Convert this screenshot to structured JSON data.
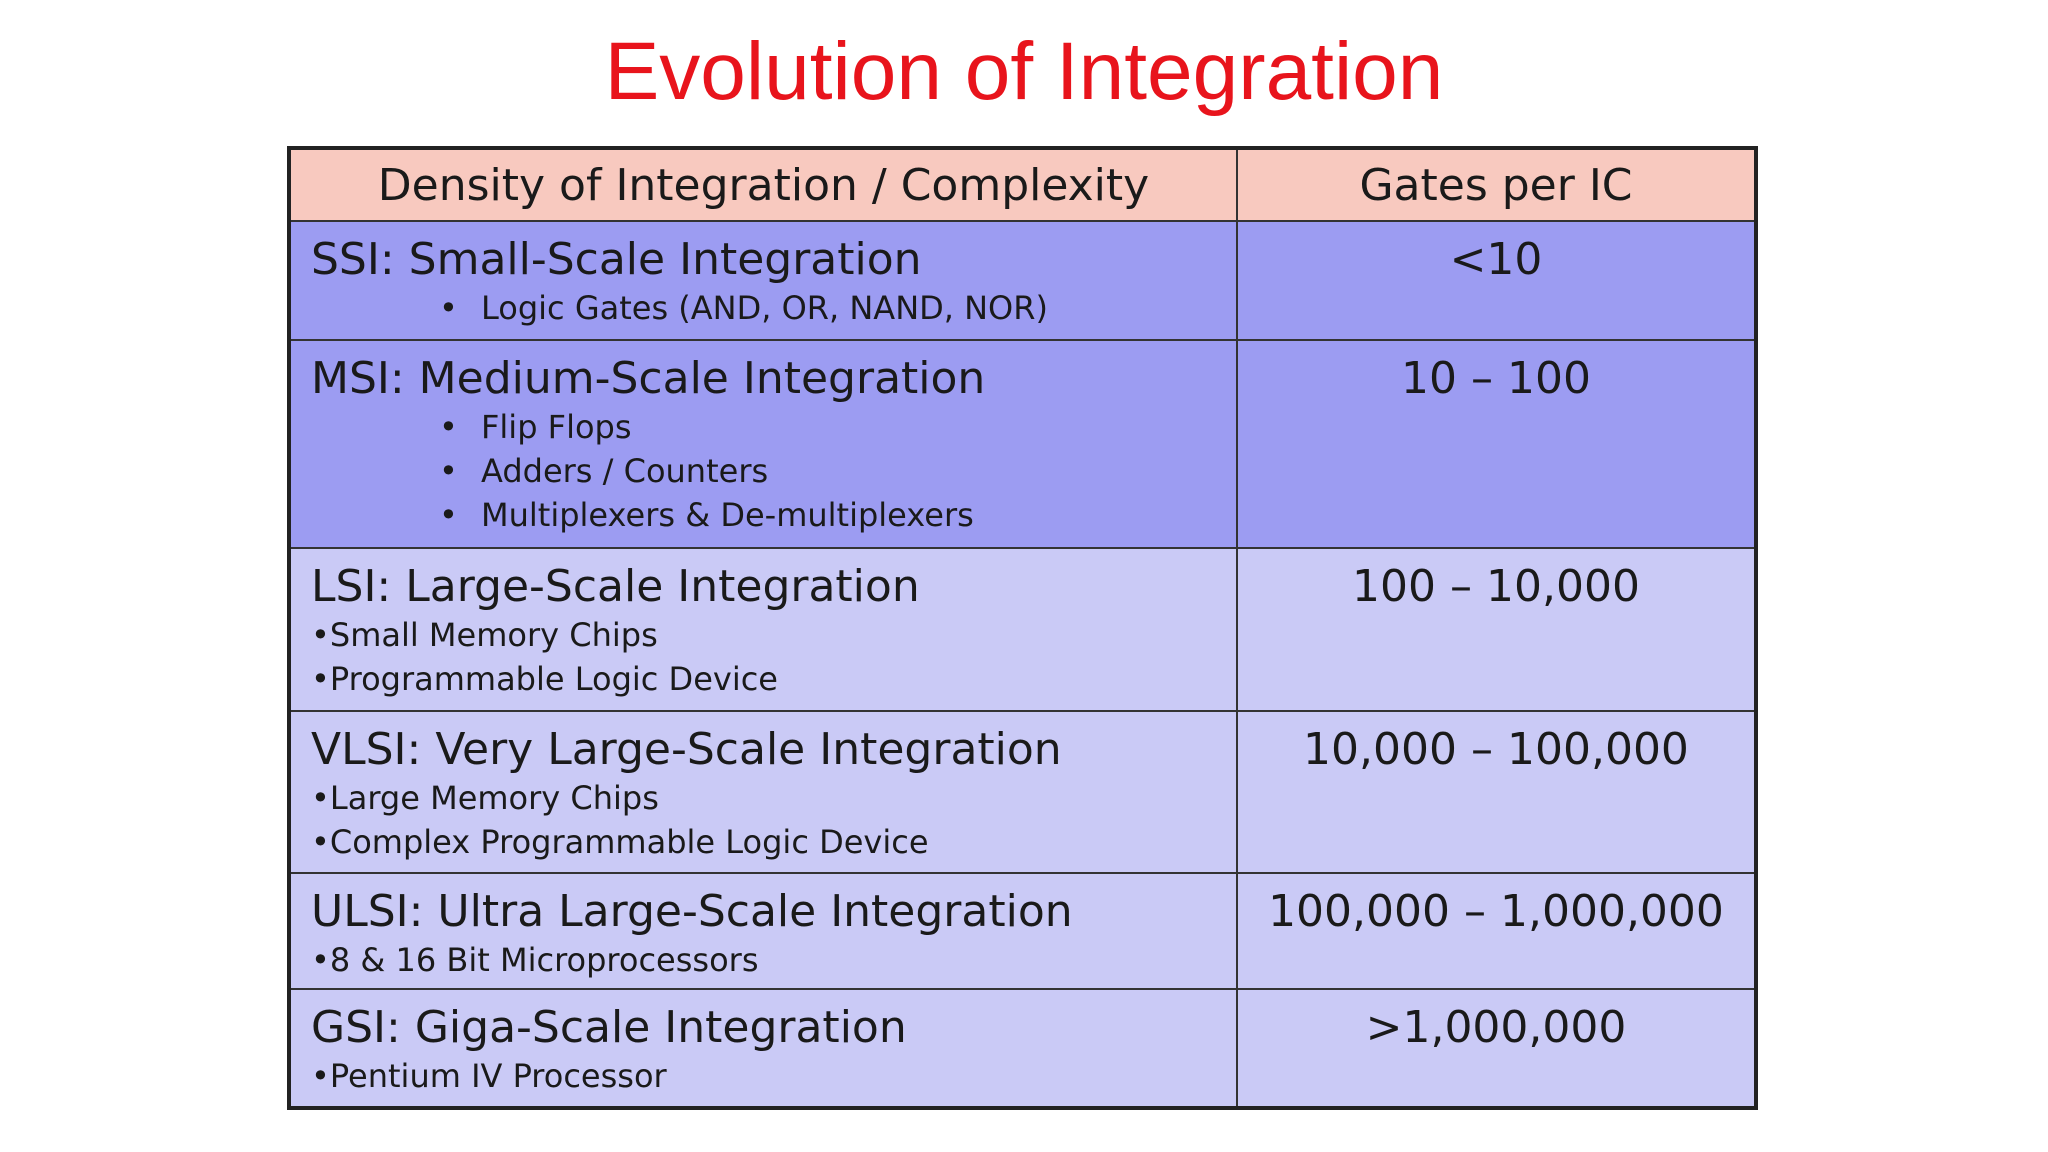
{
  "title": "Evolution of Integration",
  "table": {
    "header": [
      "Density of Integration / Complexity",
      "Gates per IC"
    ],
    "rows": [
      {
        "name": "SSI: Small-Scale Integration",
        "items": [
          "Logic Gates (AND, OR, NAND, NOR)"
        ],
        "gates": "<10"
      },
      {
        "name": "MSI: Medium-Scale Integration",
        "items": [
          "Flip Flops",
          "Adders / Counters",
          "Multiplexers & De-multiplexers"
        ],
        "gates": "10 – 100"
      },
      {
        "name": "LSI: Large-Scale Integration",
        "items": [
          "•Small Memory Chips",
          "•Programmable Logic Device"
        ],
        "gates": "100 – 10,000"
      },
      {
        "name": "VLSI: Very Large-Scale Integration",
        "items": [
          "•Large Memory Chips",
          "•Complex Programmable Logic Device"
        ],
        "gates": "10,000 – 100,000"
      },
      {
        "name": "ULSI: Ultra Large-Scale Integration",
        "items": [
          "•8 & 16 Bit Microprocessors"
        ],
        "gates": "100,000 – 1,000,000"
      },
      {
        "name": "GSI: Giga-Scale Integration",
        "items": [
          "•Pentium IV Processor"
        ],
        "gates": ">1,000,000"
      }
    ]
  }
}
